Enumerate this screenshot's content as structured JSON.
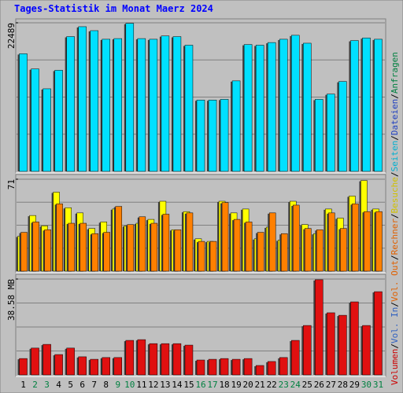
{
  "legend": [
    {
      "label": "Volumen",
      "color": "#cc0000"
    },
    {
      "label": "Vol. In",
      "color": "#3060c0"
    },
    {
      "label": "Vol. Out",
      "color": "#e06000"
    },
    {
      "label": "Rechner",
      "color": "#e06000"
    },
    {
      "label": "Besuche",
      "color": "#d0c000"
    },
    {
      "label": "Seiten",
      "color": "#00b0d0"
    },
    {
      "label": "Dateien",
      "color": "#2040c0"
    },
    {
      "label": "Anfragen",
      "color": "#008040"
    }
  ],
  "separator": "/",
  "chart_data": [
    {
      "type": "bar",
      "title": "Tages-Statistik im Monat Maerz 2024",
      "ylim": [
        0,
        22489
      ],
      "yticks": [
        22489
      ],
      "grid": true,
      "series": [
        {
          "color": "#00e0ff",
          "values": [
            17800,
            15500,
            12500,
            15300,
            20400,
            21900,
            21300,
            20000,
            20100,
            22400,
            20100,
            20000,
            20500,
            20400,
            19100,
            10800,
            10800,
            10900,
            13700,
            19200,
            19100,
            19500,
            20000,
            20600,
            19400,
            10900,
            11700,
            13600,
            19800,
            20200,
            20000
          ]
        }
      ]
    },
    {
      "type": "bar",
      "ylim": [
        0,
        71
      ],
      "yticks": [
        71
      ],
      "grid": true,
      "series": [
        {
          "color": "#ffff00",
          "values": [
            27,
            43,
            35,
            61,
            49,
            45,
            33,
            38,
            48,
            35,
            37,
            40,
            54,
            32,
            46,
            25,
            23,
            54,
            45,
            48,
            25,
            34,
            24,
            54,
            36,
            29,
            48,
            41,
            58,
            70,
            48
          ]
        },
        {
          "color": "#ff8000",
          "values": [
            30,
            38,
            32,
            52,
            37,
            37,
            29,
            30,
            50,
            36,
            42,
            37,
            44,
            32,
            45,
            23,
            23,
            53,
            40,
            38,
            30,
            45,
            29,
            51,
            33,
            32,
            45,
            33,
            52,
            46,
            46
          ]
        }
      ]
    },
    {
      "type": "bar",
      "ylim": [
        0,
        38.58
      ],
      "yticks": [
        {
          "value": 38.58,
          "label": "38.58 MB"
        }
      ],
      "grid": true,
      "categories": [
        "1",
        "2",
        "3",
        "4",
        "5",
        "6",
        "7",
        "8",
        "9",
        "10",
        "11",
        "12",
        "13",
        "14",
        "15",
        "16",
        "17",
        "18",
        "19",
        "20",
        "21",
        "22",
        "23",
        "24",
        "25",
        "26",
        "27",
        "28",
        "29",
        "30",
        "31"
      ],
      "category_colors": [
        "#000000",
        "#008040",
        "#008040",
        "#000000",
        "#000000",
        "#000000",
        "#000000",
        "#000000",
        "#008040",
        "#008040",
        "#000000",
        "#000000",
        "#000000",
        "#000000",
        "#000000",
        "#008040",
        "#008040",
        "#000000",
        "#000000",
        "#000000",
        "#000000",
        "#000000",
        "#008040",
        "#008040",
        "#000000",
        "#000000",
        "#000000",
        "#000000",
        "#000000",
        "#008040",
        "#008040"
      ],
      "series": [
        {
          "color": "#e01010",
          "values": [
            6.6,
            10.8,
            12.3,
            8.2,
            10.8,
            7.3,
            6.3,
            7.0,
            7.0,
            13.9,
            14.2,
            12.6,
            12.6,
            12.6,
            12.0,
            6.0,
            6.3,
            6.6,
            6.3,
            6.6,
            3.8,
            5.4,
            7.0,
            13.9,
            19.9,
            38.3,
            25.0,
            24.0,
            29.4,
            19.9,
            33.5
          ]
        }
      ]
    }
  ]
}
